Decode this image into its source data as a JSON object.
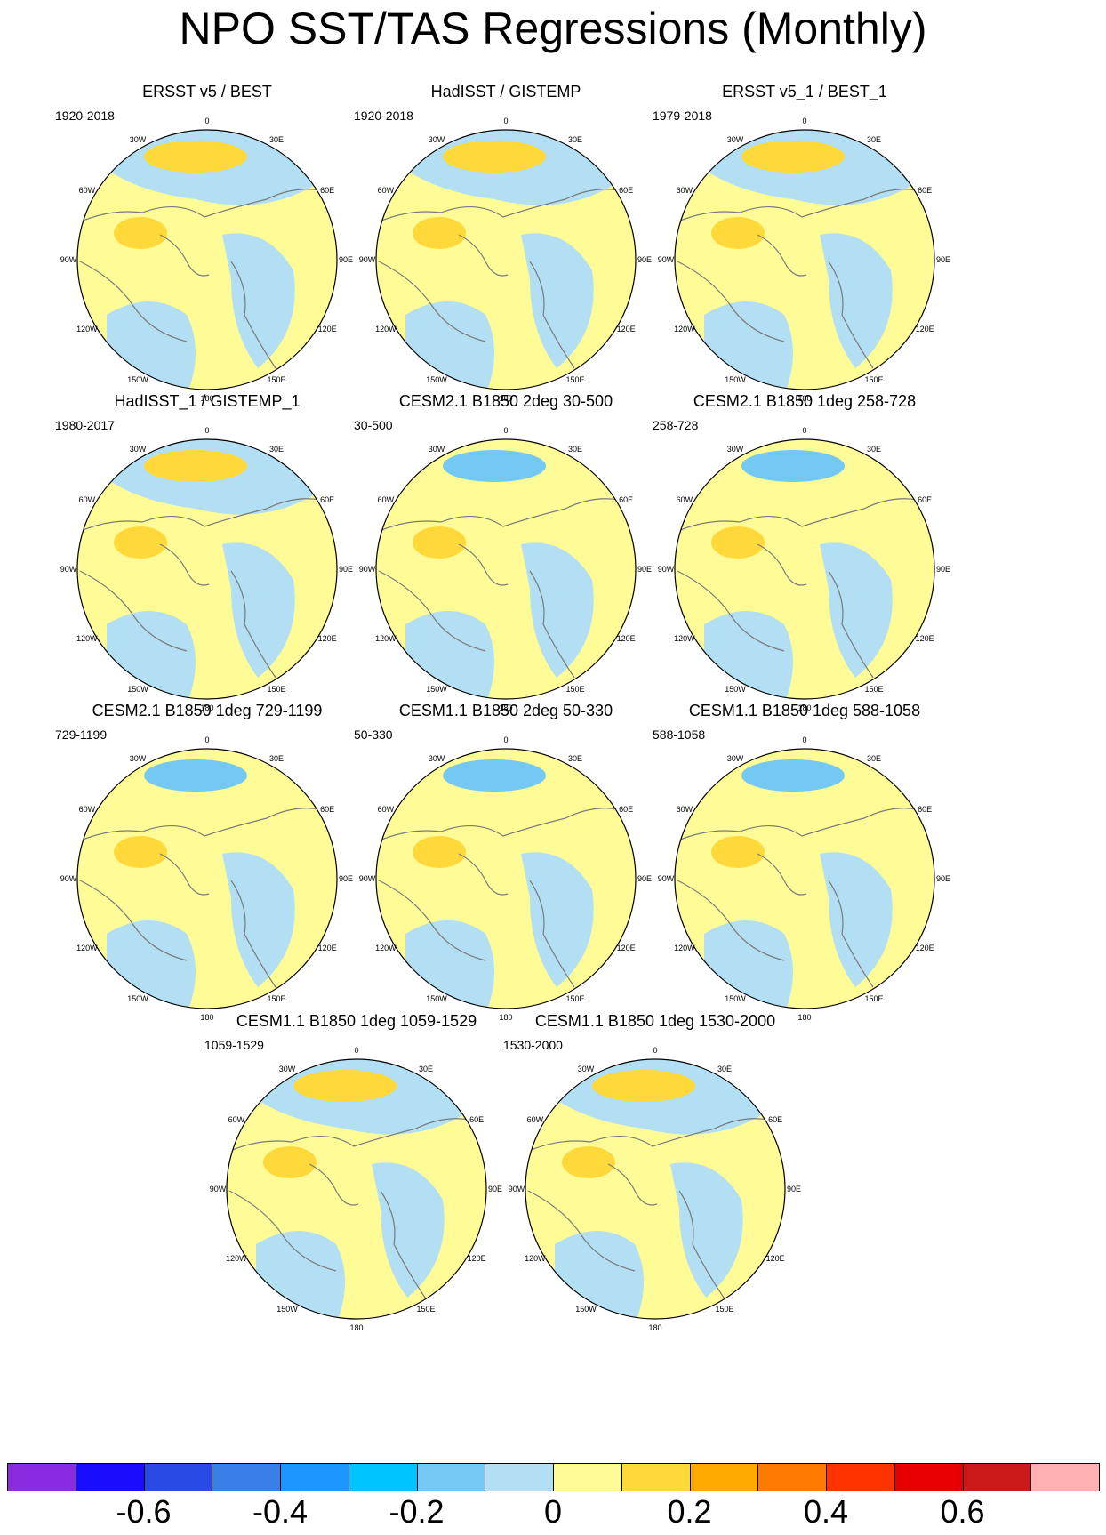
{
  "title": "NPO SST/TAS Regressions (Monthly)",
  "longitude_labels": [
    "180",
    "150E",
    "120E",
    "90E",
    "60E",
    "30E",
    "0",
    "30W",
    "60W",
    "90W",
    "120W",
    "150W"
  ],
  "panels": [
    {
      "title": "ERSST v5 / BEST",
      "period": "1920-2018",
      "pacific": "pos",
      "atlantic": "neg"
    },
    {
      "title": "HadISST / GISTEMP",
      "period": "1920-2018",
      "pacific": "pos",
      "atlantic": "neg"
    },
    {
      "title": "ERSST v5_1 / BEST_1",
      "period": "1979-2018",
      "pacific": "pos",
      "atlantic": "neg"
    },
    {
      "title": "HadISST_1 / GISTEMP_1",
      "period": "1980-2017",
      "pacific": "pos",
      "atlantic": "neg"
    },
    {
      "title": "CESM2.1 B1850 2deg 30-500",
      "period": "30-500",
      "pacific": "neg",
      "atlantic": "neg"
    },
    {
      "title": "CESM2.1 B1850 1deg 258-728",
      "period": "258-728",
      "pacific": "neg",
      "atlantic": "neg"
    },
    {
      "title": "CESM2.1 B1850 1deg 729-1199",
      "period": "729-1199",
      "pacific": "neg",
      "atlantic": "neg"
    },
    {
      "title": "CESM1.1 B1850 2deg 50-330",
      "period": "50-330",
      "pacific": "neg",
      "atlantic": "neg"
    },
    {
      "title": "CESM1.1 B1850 1deg 588-1058",
      "period": "588-1058",
      "pacific": "neg",
      "atlantic": "neg"
    },
    {
      "title": "CESM1.1 B1850 1deg 1059-1529",
      "period": "1059-1529",
      "pacific": "pos",
      "atlantic": "neg"
    },
    {
      "title": "CESM1.1 B1850 1deg 1530-2000",
      "period": "1530-2000",
      "pacific": "pos",
      "atlantic": "neg"
    }
  ],
  "colorbar": {
    "colors": [
      "#8a2be2",
      "#1a0dff",
      "#2a4ae6",
      "#3a7ee8",
      "#1e96ff",
      "#00c4ff",
      "#73c8f4",
      "#b2dff3",
      "#fffb96",
      "#ffd93a",
      "#ffaa00",
      "#ff7a00",
      "#ff3300",
      "#e60000",
      "#cc1a1a",
      "#ffb0b0"
    ],
    "tick_values": [
      -0.6,
      -0.4,
      -0.2,
      0,
      0.2,
      0.4,
      0.6
    ],
    "tick_labels": [
      "-0.6",
      "-0.4",
      "-0.2",
      "0",
      "0.2",
      "0.4",
      "0.6"
    ]
  },
  "land_fill": "#ffffff",
  "coast_color": "#7a7a7a"
}
